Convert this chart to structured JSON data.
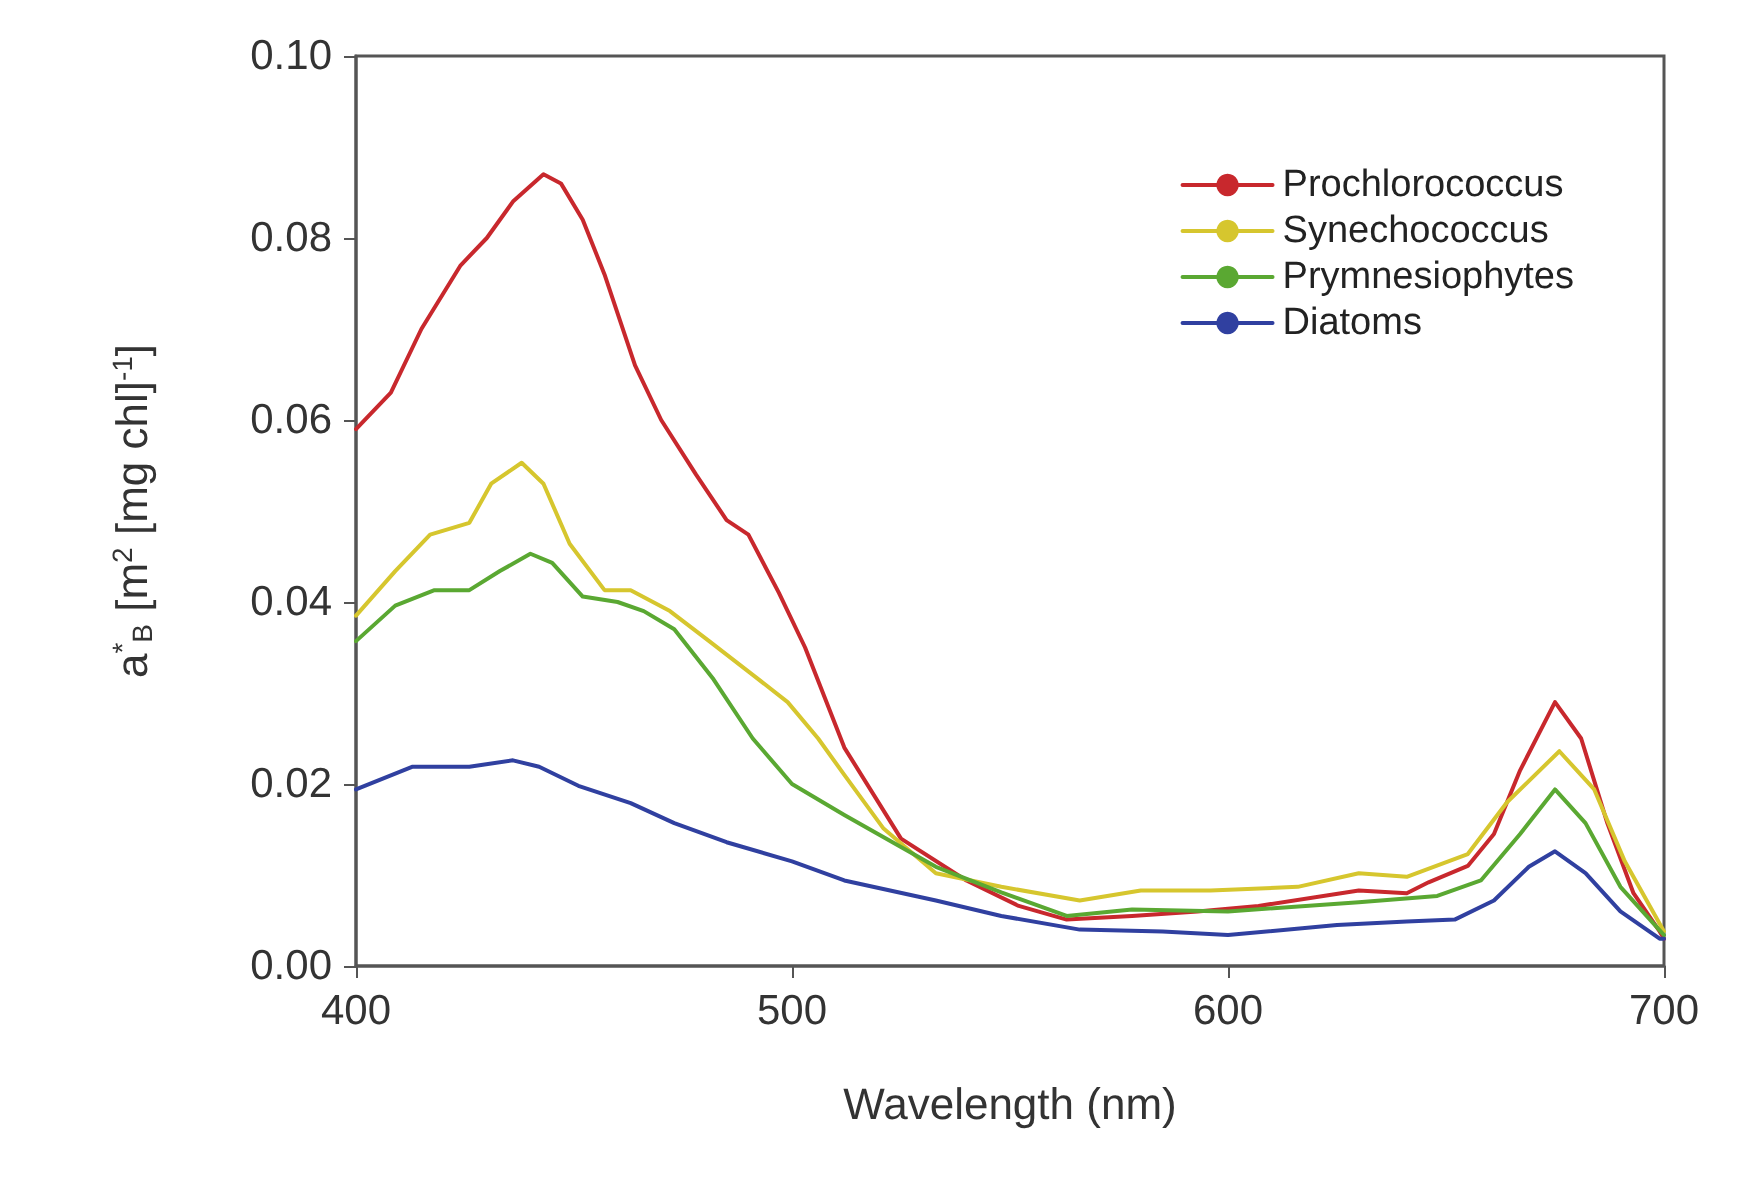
{
  "chart_data": {
    "type": "line",
    "xlabel": "Wavelength (nm)",
    "ylabel": "a$^{*}$$_{B}$ [m$^{2}$ [mg chl]$^{-1}$]",
    "xlim": [
      400,
      700
    ],
    "xticks": [
      400,
      500,
      600,
      700
    ],
    "ylim": [
      0,
      0.1
    ],
    "yticks": [
      {
        "value": 0,
        "label": "0.00"
      },
      {
        "value": 0.02,
        "label": "0.02"
      },
      {
        "value": 0.04,
        "label": "0.04"
      },
      {
        "value": 0.06,
        "label": "0.06"
      },
      {
        "value": 0.08,
        "label": "0.08"
      },
      {
        "value": 0.1,
        "label": "0.10"
      }
    ],
    "grid": false,
    "legend": "top right",
    "line_style": "solid",
    "series": [
      {
        "name": "Prochlorococcus",
        "color": "#c8282d",
        "x": [
          400,
          408,
          415,
          424,
          430,
          436,
          443,
          447,
          452,
          457,
          464,
          470,
          478,
          485,
          490,
          497,
          503,
          512,
          525,
          540,
          552,
          563,
          578,
          593,
          607,
          630,
          641,
          646,
          655,
          661,
          667,
          675,
          681,
          687,
          693,
          699,
          700
        ],
        "values": [
          0.059,
          0.063,
          0.07,
          0.077,
          0.08,
          0.084,
          0.087,
          0.086,
          0.082,
          0.076,
          0.066,
          0.06,
          0.054,
          0.049,
          0.0474,
          0.041,
          0.035,
          0.024,
          0.014,
          0.0094,
          0.0066,
          0.0051,
          0.0055,
          0.006,
          0.0066,
          0.0083,
          0.008,
          0.0092,
          0.011,
          0.0145,
          0.0215,
          0.029,
          0.025,
          0.0157,
          0.008,
          0.0038,
          0.003
        ]
      },
      {
        "name": "Synechococcus",
        "color": "#d6c62e",
        "x": [
          400,
          409,
          417,
          426,
          431,
          438,
          443,
          449,
          457,
          463,
          472,
          481,
          491,
          499,
          506,
          512,
          521,
          533,
          548,
          566,
          580,
          596,
          616,
          630,
          641,
          655,
          664,
          676,
          684,
          691,
          700
        ],
        "values": [
          0.0385,
          0.0434,
          0.0474,
          0.0487,
          0.053,
          0.0553,
          0.053,
          0.0464,
          0.0413,
          0.0413,
          0.039,
          0.0357,
          0.032,
          0.029,
          0.025,
          0.021,
          0.0151,
          0.0102,
          0.0087,
          0.0072,
          0.0083,
          0.0083,
          0.0087,
          0.0102,
          0.0098,
          0.0123,
          0.018,
          0.0236,
          0.0194,
          0.0115,
          0.0038
        ]
      },
      {
        "name": "Prymnesiophytes",
        "color": "#5aa832",
        "x": [
          400,
          409,
          418,
          426,
          433,
          440,
          445,
          452,
          460,
          466,
          473,
          482,
          491,
          500,
          512,
          533,
          548,
          563,
          578,
          600,
          630,
          648,
          658,
          667,
          675,
          682,
          690,
          700
        ],
        "values": [
          0.0357,
          0.0396,
          0.0413,
          0.0413,
          0.0434,
          0.0453,
          0.0443,
          0.0406,
          0.04,
          0.039,
          0.037,
          0.0315,
          0.025,
          0.02,
          0.0166,
          0.0109,
          0.0081,
          0.0055,
          0.0062,
          0.006,
          0.007,
          0.0077,
          0.0094,
          0.0145,
          0.0194,
          0.0157,
          0.0087,
          0.0034
        ]
      },
      {
        "name": "Diatoms",
        "color": "#3040a0",
        "x": [
          400,
          413,
          426,
          436,
          442,
          451,
          463,
          473,
          485,
          500,
          512,
          533,
          548,
          566,
          585,
          600,
          625,
          641,
          652,
          661,
          669,
          675,
          682,
          690,
          699,
          700
        ],
        "values": [
          0.0194,
          0.0219,
          0.0219,
          0.0226,
          0.0219,
          0.0198,
          0.0179,
          0.0157,
          0.0136,
          0.0115,
          0.0094,
          0.0072,
          0.0055,
          0.004,
          0.0038,
          0.0034,
          0.0045,
          0.0049,
          0.0051,
          0.0072,
          0.0109,
          0.0126,
          0.0102,
          0.006,
          0.003,
          0.003
        ]
      }
    ]
  }
}
